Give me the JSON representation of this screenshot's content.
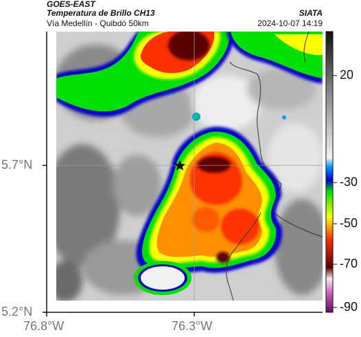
{
  "header": {
    "source": "GOES-EAST",
    "product": "Temperatura de Brillo CH13",
    "location": "Vía Medellín - Quibdó 50km",
    "agency": "SIATA",
    "datetime": "2024-10-07 14:19"
  },
  "axes": {
    "lat_ticks": [
      "5.7°N",
      "5.2°N"
    ],
    "lon_ticks": [
      "76.8°W",
      "76.3°W"
    ]
  },
  "colorbar": {
    "tick_labels": [
      "20",
      "-30",
      "-50",
      "-70",
      "-90"
    ],
    "stops": [
      {
        "t": 30,
        "color": "#111111"
      },
      {
        "t": 10,
        "color": "#808080"
      },
      {
        "t": -20,
        "color": "#f2f2f2"
      },
      {
        "t": -24,
        "color": "#00a0ff"
      },
      {
        "t": -30,
        "color": "#0000cc"
      },
      {
        "t": -34,
        "color": "#00e000"
      },
      {
        "t": -45,
        "color": "#ffff00"
      },
      {
        "t": -55,
        "color": "#ff3000"
      },
      {
        "t": -68,
        "color": "#5a0000"
      },
      {
        "t": -76,
        "color": "#f0f0f0"
      },
      {
        "t": -82,
        "color": "#d060c0"
      },
      {
        "t": -90,
        "color": "#5a1060"
      }
    ]
  },
  "map_legend": {
    "marker": "star-icon",
    "colors": {
      "cold_core": "#5a0000",
      "deep_convection": "#ff3000",
      "convection": "#ffff00",
      "cloud_edge": "#00e000",
      "anvil_edge": "#0000cc",
      "clear_warm": "#808080"
    }
  }
}
